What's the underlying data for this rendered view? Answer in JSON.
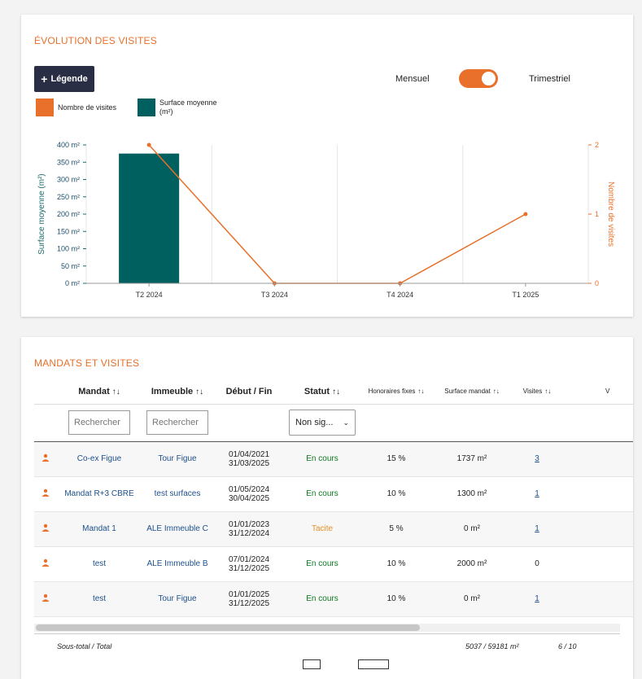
{
  "visits_card": {
    "title": "ÉVOLUTION DES VISITES",
    "legend_button": "Légende",
    "toggle_left": "Mensuel",
    "toggle_right": "Trimestriel",
    "colors": {
      "accent": "#e8702a",
      "teal": "#006060",
      "navy": "#2a2e45"
    },
    "legend": [
      {
        "label": "Nombre de visites",
        "color": "#e8702a"
      },
      {
        "label": "Surface moyenne (m²)",
        "color": "#006060"
      }
    ]
  },
  "chart_data": {
    "type": "bar",
    "categories": [
      "T2 2024",
      "T3 2024",
      "T4 2024",
      "T1 2025"
    ],
    "series": [
      {
        "name": "Surface moyenne (m²)",
        "type": "bar",
        "axis": "left",
        "values": [
          375,
          0,
          0,
          0
        ],
        "color": "#006060"
      },
      {
        "name": "Nombre de visites",
        "type": "line",
        "axis": "right",
        "values": [
          2,
          0,
          0,
          1
        ],
        "color": "#e8702a"
      }
    ],
    "ylabel": "Surface moyenne (m²)",
    "y2label": "Nombre de visites",
    "ylim": [
      0,
      400
    ],
    "y2lim": [
      0,
      2
    ],
    "yticks": [
      "0 m²",
      "50 m²",
      "100 m²",
      "150 m²",
      "200 m²",
      "250 m²",
      "300 m²",
      "350 m²",
      "400 m²"
    ],
    "y2ticks": [
      "0",
      "1",
      "2"
    ],
    "grid": true
  },
  "mandats_card": {
    "title": "MANDATS ET VISITES",
    "columns": [
      "Mandat",
      "Immeuble",
      "Début / Fin",
      "Statut",
      "Honoraires fixes",
      "Surface mandat",
      "Visites",
      "V"
    ],
    "sort_icon": "↑↓",
    "search_placeholder": "Rechercher",
    "status_filter": "Non sig...",
    "rows": [
      {
        "mandat": "Co-ex Figue",
        "immeuble": "Tour Figue",
        "debut": "01/04/2021",
        "fin": "31/03/2025",
        "statut": "En cours",
        "honoraires": "15 %",
        "surface": "1737 m²",
        "visites": "3"
      },
      {
        "mandat": "Mandat R+3 CBRE",
        "immeuble": "test surfaces",
        "debut": "01/05/2024",
        "fin": "30/04/2025",
        "statut": "En cours",
        "honoraires": "10 %",
        "surface": "1300 m²",
        "visites": "1"
      },
      {
        "mandat": "Mandat 1",
        "immeuble": "ALE Immeuble C",
        "debut": "01/01/2023",
        "fin": "31/12/2024",
        "statut": "Tacite",
        "honoraires": "5 %",
        "surface": "0 m²",
        "visites": "1"
      },
      {
        "mandat": "test",
        "immeuble": "ALE Immeuble B",
        "debut": "07/01/2024",
        "fin": "31/12/2025",
        "statut": "En cours",
        "honoraires": "10 %",
        "surface": "2000 m²",
        "visites": "0"
      },
      {
        "mandat": "test",
        "immeuble": "Tour Figue",
        "debut": "01/01/2025",
        "fin": "31/12/2025",
        "statut": "En cours",
        "honoraires": "10 %",
        "surface": "0 m²",
        "visites": "1"
      }
    ],
    "total": {
      "label": "Sous-total / Total",
      "surface": "5037 / 59181 m²",
      "visites": "6 / 10"
    }
  }
}
